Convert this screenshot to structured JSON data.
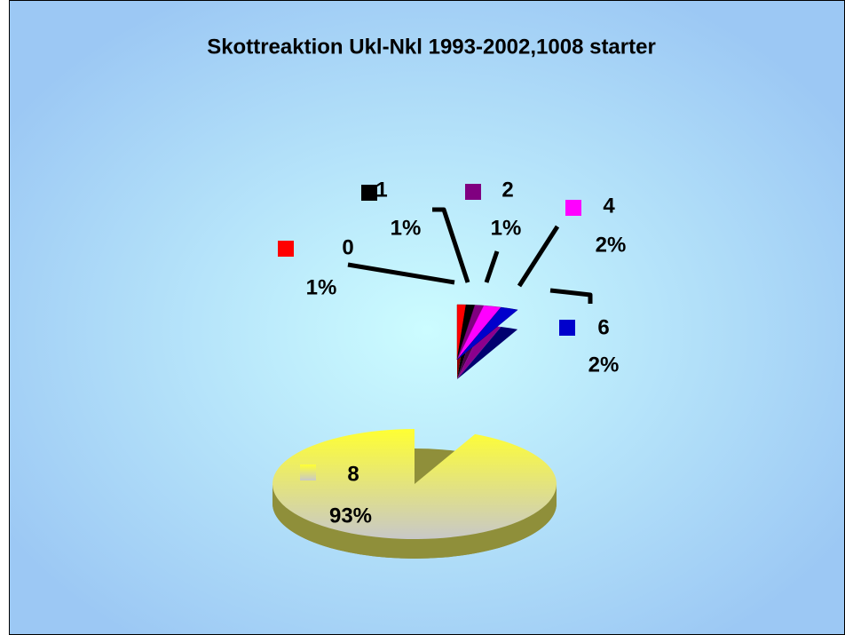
{
  "chart_data": {
    "type": "pie",
    "title": "Skottreaktion Ukl-Nkl 1993-2002,1008 starter",
    "categories": [
      "0",
      "1",
      "2",
      "4",
      "6",
      "8"
    ],
    "values": [
      1,
      1,
      1,
      2,
      2,
      93
    ],
    "value_labels": [
      "1%",
      "1%",
      "1%",
      "2%",
      "2%",
      "93%"
    ],
    "colors": [
      "#ff0000",
      "#000000",
      "#800080",
      "#ff00ff",
      "#0000cc",
      "#ffff33"
    ]
  }
}
